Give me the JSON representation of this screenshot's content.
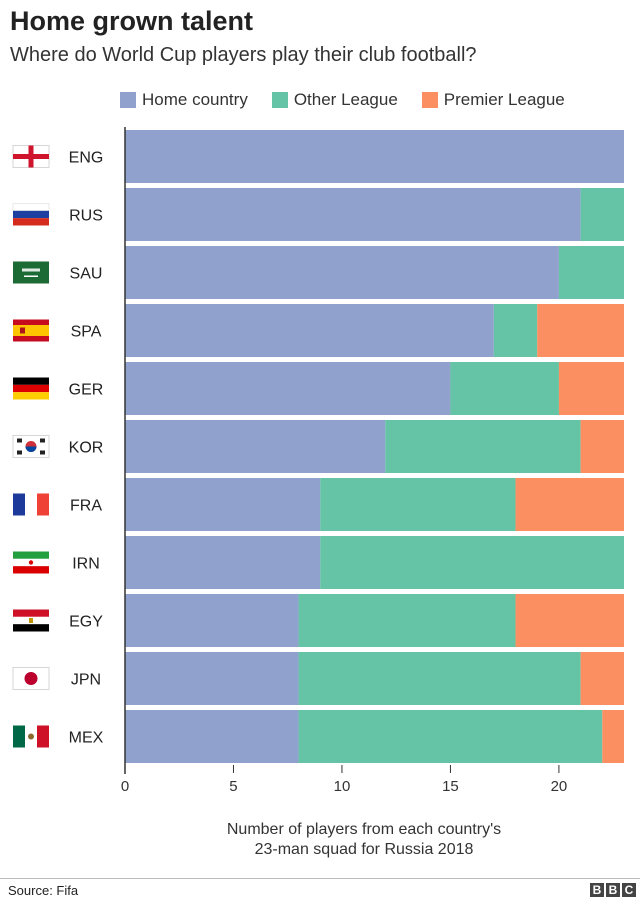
{
  "header": {
    "title": "Home grown talent",
    "subtitle": "Where do World Cup players play their club football?"
  },
  "footer": {
    "source": "Source: Fifa",
    "logo_letters": [
      "B",
      "B",
      "C"
    ]
  },
  "colors": {
    "home": "#8fa1cc",
    "other": "#64c4a5",
    "premier": "#fc8f62",
    "axis": "#333333"
  },
  "chart_data": {
    "type": "bar",
    "orientation": "horizontal",
    "stacked": true,
    "title": "Home grown talent",
    "subtitle": "Where do World Cup players play their club football?",
    "categories": [
      "ENG",
      "RUS",
      "SAU",
      "SPA",
      "GER",
      "KOR",
      "FRA",
      "IRN",
      "EGY",
      "JPN",
      "MEX"
    ],
    "series": [
      {
        "name": "Home country",
        "values": [
          23,
          21,
          20,
          17,
          15,
          12,
          9,
          9,
          8,
          8,
          8
        ]
      },
      {
        "name": "Other League",
        "values": [
          0,
          2,
          3,
          2,
          5,
          9,
          9,
          14,
          10,
          13,
          14
        ]
      },
      {
        "name": "Premier League",
        "values": [
          0,
          0,
          0,
          4,
          3,
          2,
          5,
          0,
          5,
          2,
          1
        ]
      }
    ],
    "xlabel_lines": [
      "Number of players from each country's",
      "23-man squad for Russia 2018"
    ],
    "xlim": [
      0,
      23
    ],
    "xticks": [
      0,
      5,
      10,
      15,
      20
    ],
    "legend_position": "top",
    "grid": false
  }
}
